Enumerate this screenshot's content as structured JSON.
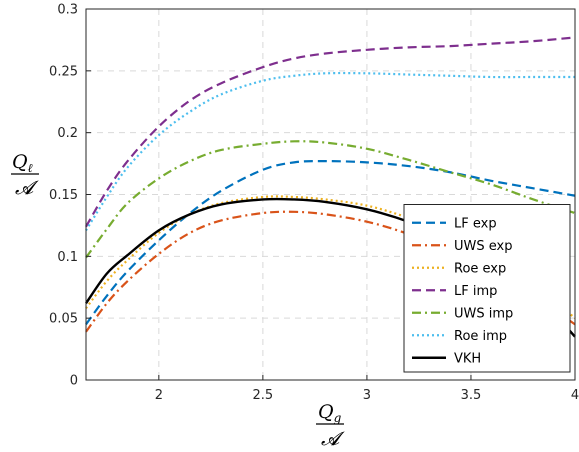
{
  "chart_data": {
    "type": "line",
    "title": "",
    "xlabel": {
      "num": "Q",
      "num_sub": "g",
      "den": "𝓐"
    },
    "ylabel": {
      "num": "Q",
      "num_sub": "ℓ",
      "den": "𝓐"
    },
    "xlim": [
      1.65,
      4.0
    ],
    "ylim": [
      0,
      0.3
    ],
    "xticks": [
      2,
      2.5,
      3,
      3.5,
      4
    ],
    "yticks": [
      0,
      0.05,
      0.1,
      0.15,
      0.2,
      0.25,
      0.3
    ],
    "xtick_labels": [
      "2",
      "2.5",
      "3",
      "3.5",
      "4"
    ],
    "ytick_labels": [
      "0",
      "0.05",
      "0.1",
      "0.15",
      "0.2",
      "0.25",
      "0.3"
    ],
    "grid": true,
    "legend_position": "bottom-right",
    "x": [
      1.65,
      1.75,
      1.85,
      2.0,
      2.15,
      2.3,
      2.5,
      2.65,
      2.8,
      3.0,
      3.2,
      3.4,
      3.6,
      3.8,
      4.0
    ],
    "series": [
      {
        "name": "LF exp",
        "color": "#0072BD",
        "dash": "dash",
        "values": [
          0.045,
          0.068,
          0.088,
          0.113,
          0.135,
          0.153,
          0.17,
          0.176,
          0.177,
          0.176,
          0.173,
          0.168,
          0.161,
          0.155,
          0.149
        ]
      },
      {
        "name": "UWS exp",
        "color": "#D95319",
        "dash": "dashdot",
        "values": [
          0.039,
          0.062,
          0.08,
          0.102,
          0.119,
          0.129,
          0.135,
          0.136,
          0.134,
          0.128,
          0.118,
          0.104,
          0.088,
          0.068,
          0.045
        ]
      },
      {
        "name": "Roe exp",
        "color": "#EDB120",
        "dash": "dot",
        "values": [
          0.058,
          0.08,
          0.097,
          0.119,
          0.134,
          0.143,
          0.148,
          0.148,
          0.146,
          0.141,
          0.131,
          0.117,
          0.1,
          0.078,
          0.05
        ]
      },
      {
        "name": "LF imp",
        "color": "#7E2F8E",
        "dash": "dash",
        "values": [
          0.124,
          0.153,
          0.177,
          0.205,
          0.226,
          0.24,
          0.253,
          0.26,
          0.264,
          0.267,
          0.269,
          0.27,
          0.272,
          0.274,
          0.277
        ]
      },
      {
        "name": "UWS imp",
        "color": "#77AC30",
        "dash": "dashdot",
        "values": [
          0.099,
          0.122,
          0.143,
          0.163,
          0.177,
          0.186,
          0.191,
          0.193,
          0.192,
          0.187,
          0.178,
          0.168,
          0.158,
          0.146,
          0.135
        ]
      },
      {
        "name": "Roe imp",
        "color": "#4DBEEE",
        "dash": "dot",
        "values": [
          0.121,
          0.148,
          0.172,
          0.198,
          0.217,
          0.231,
          0.242,
          0.246,
          0.248,
          0.248,
          0.247,
          0.246,
          0.245,
          0.245,
          0.245
        ]
      },
      {
        "name": "VKH",
        "color": "#000000",
        "dash": "solid",
        "values": [
          0.062,
          0.086,
          0.101,
          0.121,
          0.134,
          0.142,
          0.146,
          0.146,
          0.144,
          0.138,
          0.128,
          0.114,
          0.097,
          0.072,
          0.035
        ]
      }
    ]
  }
}
